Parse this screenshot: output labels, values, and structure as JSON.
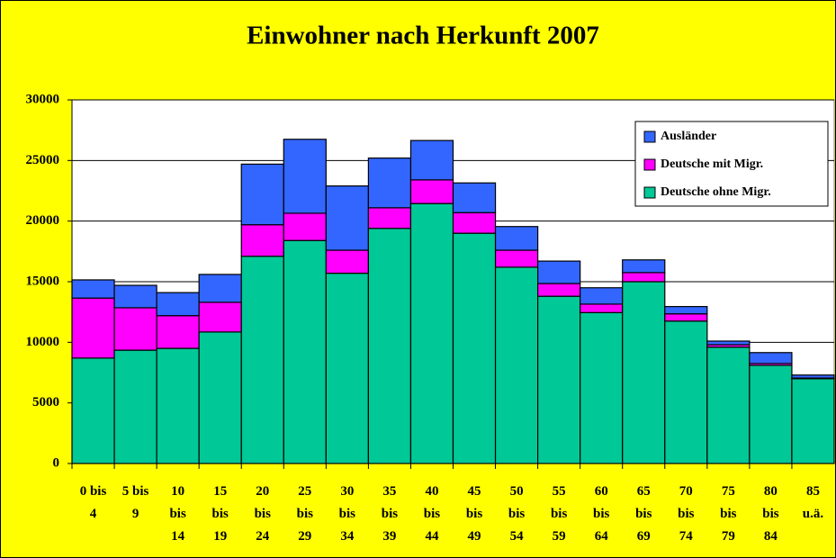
{
  "chart_data": {
    "type": "stacked_bar",
    "title": "Einwohner nach Herkunft 2007",
    "categories": [
      "0 bis\n4",
      "5 bis\n9",
      "10\nbis\n14",
      "15\nbis\n19",
      "20\nbis\n24",
      "25\nbis\n29",
      "30\nbis\n34",
      "35\nbis\n39",
      "40\nbis\n44",
      "45\nbis\n49",
      "50\nbis\n54",
      "55\nbis\n59",
      "60\nbis\n64",
      "65\nbis\n69",
      "70\nbis\n74",
      "75\nbis\n79",
      "80\nbis\n84",
      "85\nu.ä."
    ],
    "series": [
      {
        "name": "Deutsche ohne Migr.",
        "color": "#00c896",
        "values": [
          8700,
          9350,
          9500,
          10850,
          17100,
          18400,
          15700,
          19400,
          21450,
          19000,
          16200,
          13800,
          12450,
          15000,
          11750,
          9600,
          8100,
          7000
        ]
      },
      {
        "name": "Deutsche mit Migr.",
        "color": "#ff00ff",
        "values": [
          4950,
          3500,
          2700,
          2450,
          2600,
          2250,
          1900,
          1700,
          1950,
          1700,
          1400,
          1050,
          700,
          750,
          600,
          200,
          150,
          50
        ]
      },
      {
        "name": "Ausländer",
        "color": "#3366ff",
        "values": [
          1500,
          1850,
          1900,
          2300,
          5000,
          6100,
          5300,
          4100,
          3250,
          2450,
          1950,
          1850,
          1350,
          1050,
          600,
          300,
          900,
          250
        ]
      }
    ],
    "ylim": [
      0,
      30000
    ],
    "yticks": [
      0,
      5000,
      10000,
      15000,
      20000,
      25000,
      30000
    ],
    "grid": true,
    "legend": "top-right"
  }
}
